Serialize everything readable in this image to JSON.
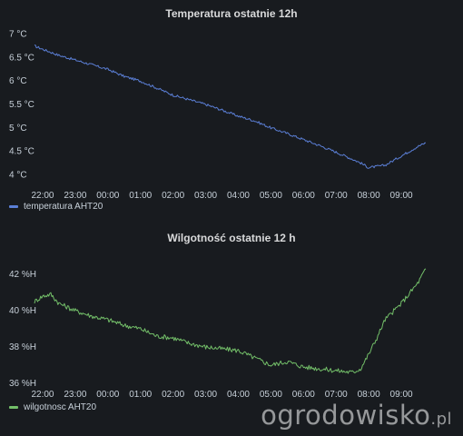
{
  "watermark": {
    "text": "ogrodowisko",
    "suffix": ".pl"
  },
  "chart_data": [
    {
      "type": "line",
      "title": "Temperatura ostatnie 12h",
      "x_ticks": [
        "22:00",
        "23:00",
        "00:00",
        "01:00",
        "02:00",
        "03:00",
        "04:00",
        "05:00",
        "06:00",
        "07:00",
        "08:00",
        "09:00"
      ],
      "y_ticks": [
        "4 °C",
        "4.5 °C",
        "5 °C",
        "5.5 °C",
        "6 °C",
        "6.5 °C",
        "7 °C"
      ],
      "ylim": [
        3.85,
        7.15
      ],
      "xlim": [
        "21:45",
        "09:50"
      ],
      "series": [
        {
          "name": "temperatura AHT20",
          "color": "#5b7fd6",
          "x": [
            "21:45",
            "22:00",
            "22:30",
            "23:00",
            "23:30",
            "00:00",
            "00:30",
            "01:00",
            "01:30",
            "02:00",
            "02:30",
            "03:00",
            "03:30",
            "04:00",
            "04:30",
            "05:00",
            "05:30",
            "06:00",
            "06:30",
            "07:00",
            "07:30",
            "07:45",
            "08:00",
            "08:30",
            "09:00",
            "09:30",
            "09:45"
          ],
          "y": [
            6.75,
            6.68,
            6.55,
            6.45,
            6.35,
            6.25,
            6.1,
            6.0,
            5.85,
            5.7,
            5.6,
            5.5,
            5.38,
            5.25,
            5.15,
            5.0,
            4.88,
            4.75,
            4.62,
            4.48,
            4.33,
            4.25,
            4.15,
            4.2,
            4.4,
            4.6,
            4.68
          ]
        }
      ]
    },
    {
      "type": "line",
      "title": "Wilgotność ostatnie 12 h",
      "x_ticks": [
        "22:00",
        "23:00",
        "00:00",
        "01:00",
        "02:00",
        "03:00",
        "04:00",
        "05:00",
        "06:00",
        "07:00",
        "08:00",
        "09:00"
      ],
      "y_ticks": [
        "36 %H",
        "38 %H",
        "40 %H",
        "42 %H"
      ],
      "ylim": [
        35.9,
        42.6
      ],
      "xlim": [
        "21:45",
        "09:50"
      ],
      "series": [
        {
          "name": "wilgotnosc AHT20",
          "color": "#73bf69",
          "x": [
            "21:45",
            "22:00",
            "22:15",
            "22:30",
            "23:00",
            "23:30",
            "00:00",
            "00:30",
            "01:00",
            "01:30",
            "02:00",
            "02:30",
            "03:00",
            "03:30",
            "04:00",
            "04:30",
            "05:00",
            "05:30",
            "06:00",
            "06:30",
            "07:00",
            "07:30",
            "07:45",
            "08:00",
            "08:15",
            "08:30",
            "09:00",
            "09:30",
            "09:45"
          ],
          "y": [
            40.5,
            40.8,
            40.9,
            40.4,
            40.0,
            39.7,
            39.5,
            39.2,
            39.0,
            38.6,
            38.5,
            38.2,
            38.0,
            37.9,
            37.8,
            37.4,
            37.0,
            37.2,
            36.9,
            36.8,
            36.7,
            36.6,
            36.8,
            37.6,
            38.5,
            39.5,
            40.4,
            41.5,
            42.3
          ]
        }
      ]
    }
  ]
}
